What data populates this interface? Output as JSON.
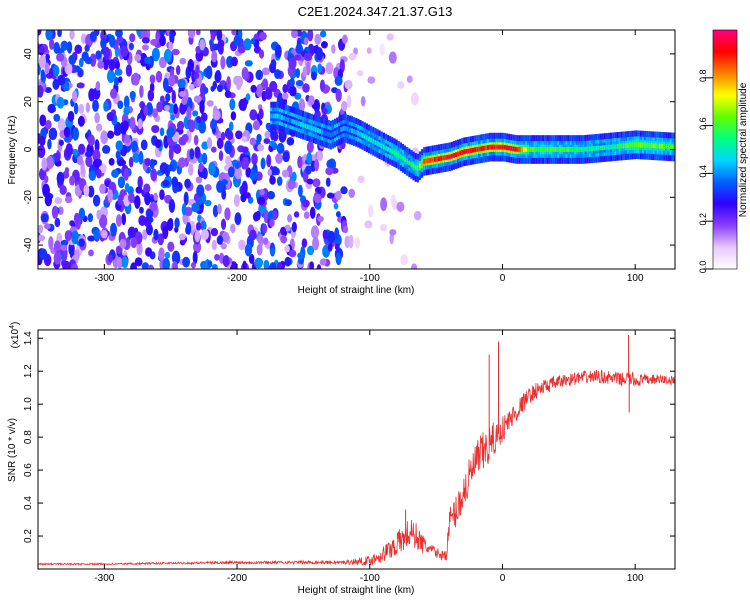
{
  "title": "C2E1.2024.347.21.37.G13",
  "chart_data": [
    {
      "type": "heatmap",
      "xlabel": "Height of straight line (km)",
      "ylabel": "Frequency (Hz)",
      "xlim": [
        -350,
        130
      ],
      "ylim": [
        -50,
        50
      ],
      "xticks": [
        -300,
        -200,
        -100,
        0,
        100
      ],
      "yticks": [
        -40,
        -20,
        0,
        20,
        40
      ],
      "colorbar": {
        "label": "Normalized spectral amplitude",
        "range": [
          0,
          1
        ],
        "ticks": [
          "0.0",
          "0.2",
          "0.4",
          "0.6",
          "0.8"
        ],
        "colors": [
          "#ffffff",
          "#e8c8ff",
          "#8a40ff",
          "#3000ff",
          "#0060ff",
          "#00d8ff",
          "#00ff80",
          "#60ff00",
          "#ffff00",
          "#ff8000",
          "#ff0000",
          "#ff0080"
        ]
      },
      "ridge": {
        "x": [
          -170,
          -160,
          -150,
          -140,
          -130,
          -120,
          -110,
          -100,
          -90,
          -80,
          -70,
          -65,
          -60,
          -50,
          -40,
          -30,
          -20,
          -10,
          0,
          10,
          20,
          40,
          60,
          80,
          100,
          130
        ],
        "y": [
          14,
          12,
          10,
          8,
          6,
          9,
          7,
          4,
          1,
          -2,
          -6,
          -8,
          -5,
          -4,
          -3,
          -1,
          0,
          1,
          1,
          0,
          0,
          0,
          0,
          1,
          2,
          1
        ],
        "amplitude": [
          0.45,
          0.4,
          0.5,
          0.45,
          0.35,
          0.4,
          0.45,
          0.5,
          0.5,
          0.55,
          0.55,
          0.6,
          0.85,
          0.9,
          0.92,
          0.93,
          0.92,
          0.9,
          0.92,
          0.9,
          0.6,
          0.6,
          0.55,
          0.5,
          0.65,
          0.6
        ]
      },
      "noise_region": {
        "x": [
          -350,
          -60
        ],
        "density": "high",
        "level": [
          0.1,
          0.4
        ]
      }
    },
    {
      "type": "line",
      "xlabel": "Height of straight line (km)",
      "ylabel": "SNR (10 * v/v)",
      "y_multiplier": "(x10",
      "y_multiplier_exp": "4",
      "y_multiplier_close": ")",
      "xlim": [
        -350,
        130
      ],
      "ylim": [
        0,
        1.45
      ],
      "xticks": [
        -300,
        -200,
        -100,
        0,
        100
      ],
      "yticks": [
        0.2,
        0.4,
        0.6,
        0.8,
        1.0,
        1.2,
        1.4
      ],
      "color": "#e83030",
      "series": [
        {
          "x": [
            -350,
            -300,
            -250,
            -200,
            -150,
            -120,
            -100,
            -95,
            -90,
            -85,
            -80,
            -75,
            -70,
            -65,
            -60,
            -55,
            -50,
            -45,
            -42,
            -40,
            -35,
            -30,
            -25,
            -20,
            -15,
            -10,
            -5,
            0,
            5,
            10,
            15,
            20,
            25,
            30,
            40,
            50,
            60,
            70,
            80,
            90,
            95,
            100,
            110,
            120,
            130
          ],
          "y": [
            0.03,
            0.03,
            0.035,
            0.04,
            0.04,
            0.04,
            0.05,
            0.07,
            0.09,
            0.12,
            0.15,
            0.18,
            0.22,
            0.2,
            0.15,
            0.12,
            0.1,
            0.08,
            0.1,
            0.28,
            0.35,
            0.45,
            0.55,
            0.65,
            0.7,
            0.75,
            0.8,
            0.85,
            0.9,
            0.95,
            1.0,
            1.05,
            1.08,
            1.1,
            1.13,
            1.15,
            1.16,
            1.17,
            1.16,
            1.15,
            1.16,
            1.14,
            1.15,
            1.15,
            1.14
          ],
          "noise": [
            0.005,
            0.005,
            0.006,
            0.008,
            0.01,
            0.01,
            0.03,
            0.04,
            0.05,
            0.06,
            0.08,
            0.08,
            0.1,
            0.08,
            0.06,
            0.04,
            0.03,
            0.03,
            0.05,
            0.1,
            0.1,
            0.12,
            0.12,
            0.12,
            0.13,
            0.12,
            0.1,
            0.08,
            0.08,
            0.07,
            0.06,
            0.05,
            0.05,
            0.05,
            0.04,
            0.04,
            0.04,
            0.04,
            0.04,
            0.04,
            0.05,
            0.04,
            0.03,
            0.03,
            0.03
          ]
        }
      ],
      "spikes": [
        {
          "x": -73,
          "y": 0.36
        },
        {
          "x": -10,
          "y": 1.3
        },
        {
          "x": -3,
          "y": 1.38
        },
        {
          "x": 95,
          "y": 1.42
        },
        {
          "x": 95.5,
          "y": 0.95
        }
      ]
    }
  ]
}
